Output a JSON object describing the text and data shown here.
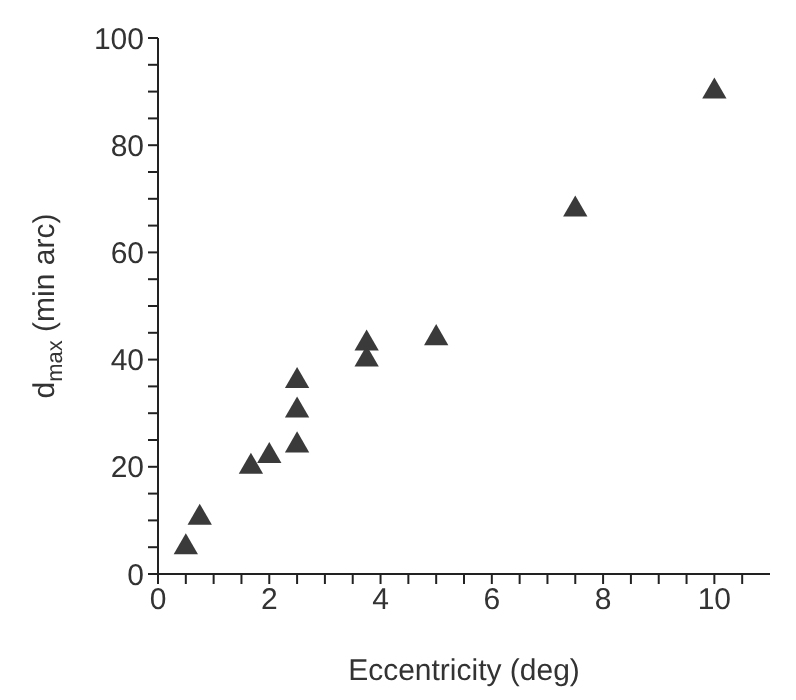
{
  "chart_data": {
    "type": "scatter",
    "xlabel": "Eccentricity (deg)",
    "ylabel": "d$_{max}$ (min arc)",
    "x": [
      0.5,
      0.75,
      1.67,
      2,
      2.5,
      2.5,
      2.5,
      3.75,
      3.75,
      5,
      7.5,
      10
    ],
    "values": [
      5,
      10.5,
      20,
      22,
      24,
      30.5,
      36,
      40,
      43,
      44,
      68,
      90
    ],
    "color": "#3a3a3a",
    "marker": "triangle",
    "grid": false,
    "xlim": [
      0,
      11
    ],
    "xticks": [
      0,
      {
        "value": 0.5,
        "label": null
      },
      {
        "value": 1,
        "label": null
      },
      {
        "value": 1.5,
        "label": null
      },
      2,
      {
        "value": 2.5,
        "label": null
      },
      {
        "value": 3,
        "label": null
      },
      {
        "value": 3.5,
        "label": null
      },
      4,
      {
        "value": 4.5,
        "label": null
      },
      {
        "value": 5,
        "label": null
      },
      {
        "value": 5.5,
        "label": null
      },
      6,
      {
        "value": 6.5,
        "label": null
      },
      {
        "value": 7,
        "label": null
      },
      {
        "value": 7.5,
        "label": null
      },
      8,
      {
        "value": 8.5,
        "label": null
      },
      {
        "value": 9,
        "label": null
      },
      {
        "value": 9.5,
        "label": null
      },
      10,
      {
        "value": 10.5,
        "label": null
      }
    ],
    "ylim": [
      0,
      100
    ],
    "yticks": [
      0,
      {
        "value": 5,
        "label": null
      },
      {
        "value": 10,
        "label": null
      },
      {
        "value": 15,
        "label": null
      },
      20,
      {
        "value": 25,
        "label": null
      },
      {
        "value": 30,
        "label": null
      },
      {
        "value": 35,
        "label": null
      },
      40,
      {
        "value": 45,
        "label": null
      },
      {
        "value": 50,
        "label": null
      },
      {
        "value": 55,
        "label": null
      },
      60,
      {
        "value": 65,
        "label": null
      },
      {
        "value": 70,
        "label": null
      },
      {
        "value": 75,
        "label": null
      },
      80,
      {
        "value": 85,
        "label": null
      },
      {
        "value": 90,
        "label": null
      },
      {
        "value": 95,
        "label": null
      },
      100
    ]
  }
}
